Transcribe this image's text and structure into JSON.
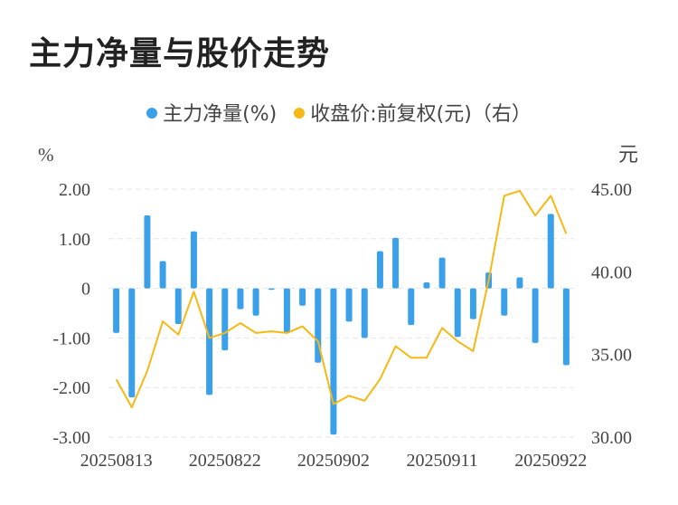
{
  "title": "主力净量与股价走势",
  "legend": {
    "net": "主力净量(%)",
    "price": "收盘价:前复权(元)（右）"
  },
  "colors": {
    "bar": "#3ba0ea",
    "line": "#f5b814",
    "grid": "#e6e6e6",
    "text": "#444444"
  },
  "chart_data": {
    "type": "bar+line",
    "left_axis": {
      "unit": "%",
      "ticks": [
        "2.00",
        "1.00",
        "0",
        "-1.00",
        "-2.00",
        "-3.00"
      ],
      "range": [
        -3,
        2
      ]
    },
    "right_axis": {
      "unit": "元",
      "ticks": [
        "45.00",
        "40.00",
        "35.00",
        "30.00"
      ],
      "range": [
        30,
        45
      ]
    },
    "x_tick_labels": [
      "20250813",
      "20250822",
      "20250902",
      "20250911",
      "20250922"
    ],
    "x_tick_index": [
      0,
      7,
      14,
      21,
      28
    ],
    "series": [
      {
        "name": "主力净量(%)",
        "type": "bar",
        "values": [
          -0.9,
          -2.2,
          1.47,
          0.55,
          -0.72,
          1.15,
          -2.15,
          -1.25,
          -0.42,
          -0.55,
          -0.03,
          -0.9,
          -0.35,
          -1.5,
          -2.95,
          -0.67,
          -1.0,
          0.75,
          1.02,
          -0.74,
          0.12,
          0.62,
          -0.98,
          -0.62,
          0.32,
          -0.55,
          0.22,
          -1.1,
          1.5,
          -1.55
        ]
      },
      {
        "name": "收盘价:前复权(元)（右）",
        "type": "line",
        "values": [
          33.5,
          31.8,
          34.0,
          37.0,
          36.2,
          38.8,
          36.0,
          36.3,
          36.9,
          36.3,
          36.4,
          36.3,
          36.7,
          35.8,
          32.0,
          32.5,
          32.2,
          33.5,
          35.5,
          34.8,
          34.8,
          36.6,
          35.8,
          35.2,
          39.5,
          44.6,
          44.9,
          43.4,
          44.6,
          42.3
        ]
      }
    ]
  }
}
